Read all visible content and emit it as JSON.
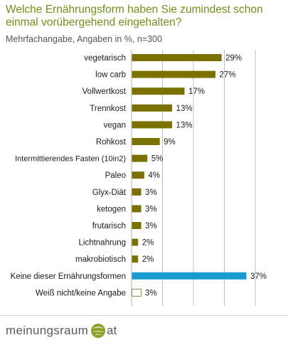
{
  "chart_data": {
    "type": "bar",
    "orientation": "horizontal",
    "title": "Welche Ernährungsform haben Sie zumindest schon einmal vorübergehend eingehalten?",
    "subtitle": "Mehrfachangabe, Angaben in %, n=300",
    "categories": [
      "vegetarisch",
      "low carb",
      "Vollwertkost",
      "Trennkost",
      "vegan",
      "Rohkost",
      "Intermittierendes Fasten (10in2)",
      "Paleo",
      "Glyx-Diät",
      "ketogen",
      "frutarisch",
      "Lichtnahrung",
      "makrobiotisch",
      "Keine dieser Ernährungsformen",
      "Weiß nicht/keine Angabe"
    ],
    "values": [
      29,
      27,
      17,
      13,
      13,
      9,
      5,
      4,
      3,
      3,
      3,
      2,
      2,
      37,
      3
    ],
    "value_labels": [
      "29%",
      "27%",
      "17%",
      "13%",
      "13%",
      "9%",
      "5%",
      "4%",
      "3%",
      "3%",
      "3%",
      "2%",
      "2%",
      "37%",
      "3%"
    ],
    "bar_styles": [
      "diet",
      "diet",
      "diet",
      "diet",
      "diet",
      "diet",
      "diet",
      "diet",
      "diet",
      "diet",
      "diet",
      "diet",
      "diet",
      "none",
      "unknown"
    ],
    "xlim": [
      0,
      40
    ],
    "grid": true,
    "grid_interval": 10
  },
  "colors": {
    "title": "#6f8f1f",
    "diet_bar": "#7a7100",
    "none_bar": "#1a9bd0",
    "unknown_bar_fill": "#ffffff",
    "unknown_bar_stroke": "#8a8a5a",
    "grid": "#bfbfbf",
    "label": "#1a1a1a"
  },
  "logo": {
    "text": "meinungsraum",
    "suffix": "at"
  }
}
